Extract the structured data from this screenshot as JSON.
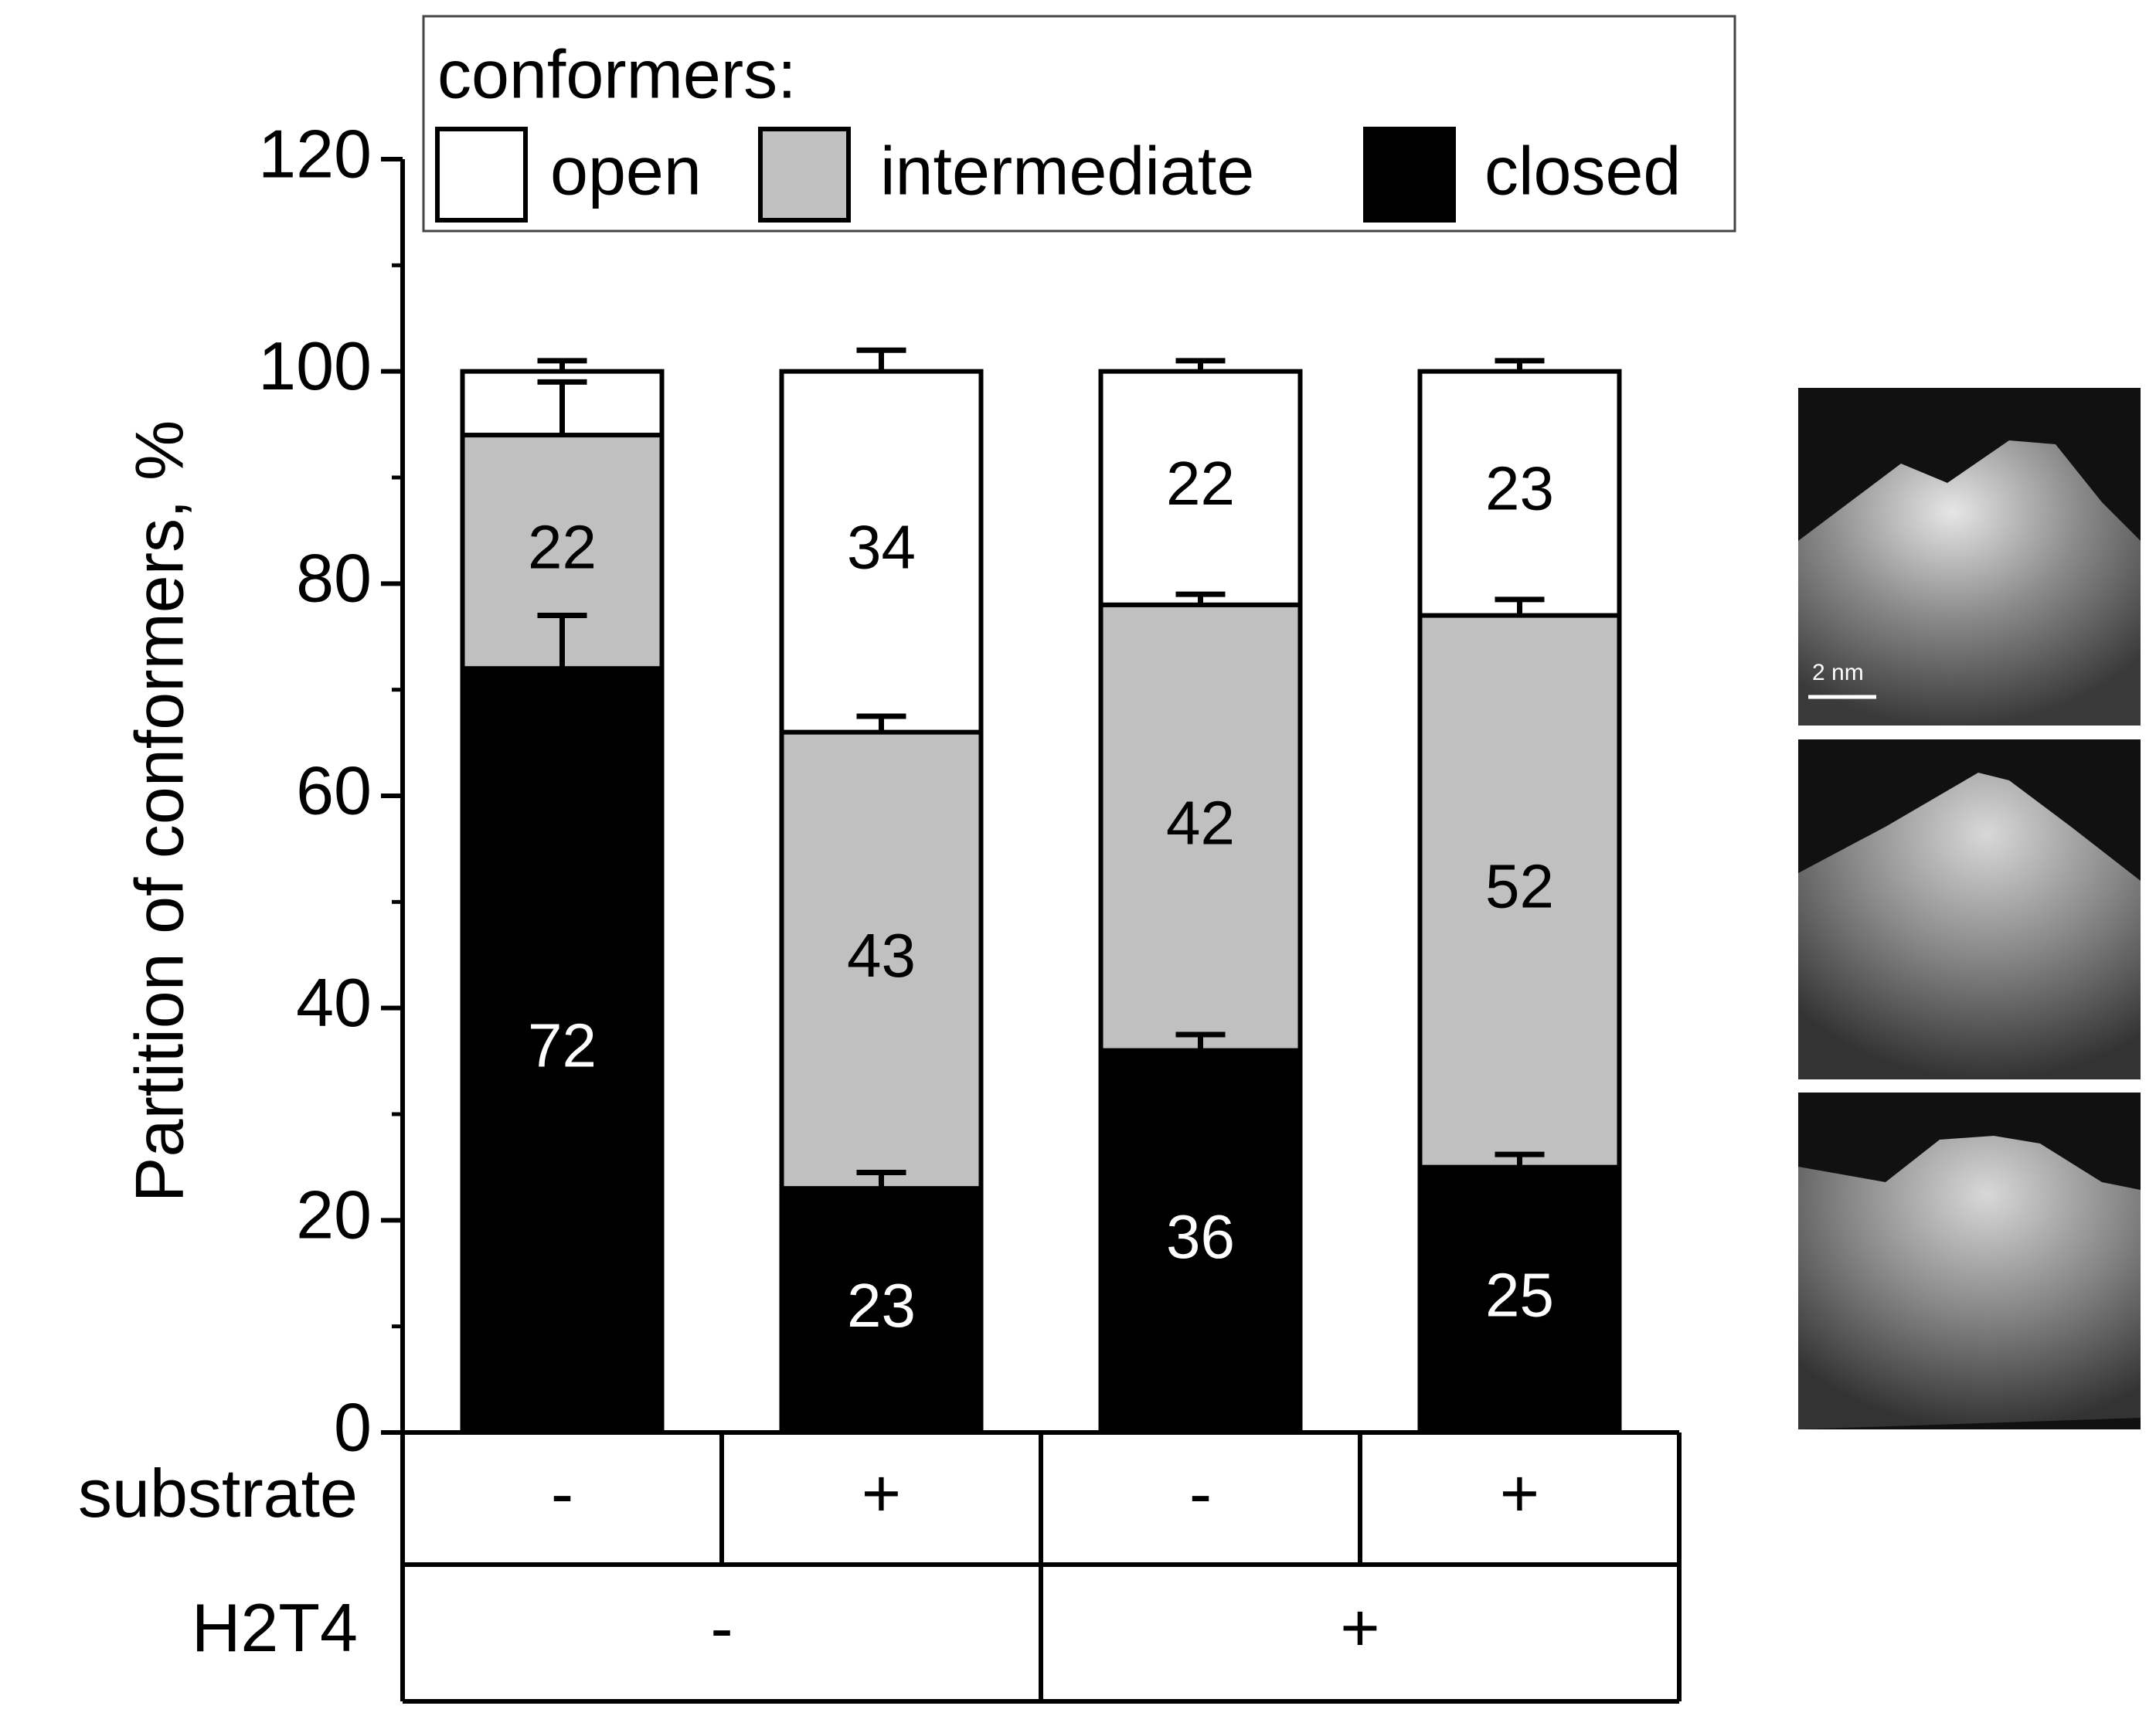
{
  "chart_data": {
    "type": "stacked-bar",
    "y_label": "Partition of conformers, %",
    "legend_title": "conformers:",
    "categories": [
      null,
      null,
      null,
      null
    ],
    "series": [
      {
        "name": "closed",
        "color": "#000000",
        "values": [
          72,
          23,
          36,
          25
        ],
        "errors": [
          5,
          1.5,
          1.5,
          1.2
        ]
      },
      {
        "name": "intermediate",
        "color": "#c0c0c0",
        "values": [
          22,
          43,
          42,
          52
        ],
        "errors": [
          5,
          1.5,
          1,
          1.5
        ]
      },
      {
        "name": "open",
        "color": "#ffffff",
        "values": [
          6,
          34,
          22,
          23
        ],
        "value_labels": [
          null,
          "34",
          "22",
          "23"
        ],
        "errors": [
          1,
          2,
          1,
          1
        ]
      }
    ],
    "legend_order": [
      2,
      1,
      0
    ],
    "ylim": [
      0,
      120
    ],
    "yticks": [
      0,
      20,
      40,
      60,
      80,
      100,
      120
    ],
    "yminorticks": [
      10,
      30,
      50,
      70,
      90,
      110
    ],
    "x_table": [
      {
        "name": "substrate",
        "cells": [
          "-",
          "+",
          "-",
          "+"
        ]
      },
      {
        "name": "H2T4",
        "cells": [
          "-",
          "+"
        ]
      }
    ],
    "image_scale": "2 nm"
  }
}
